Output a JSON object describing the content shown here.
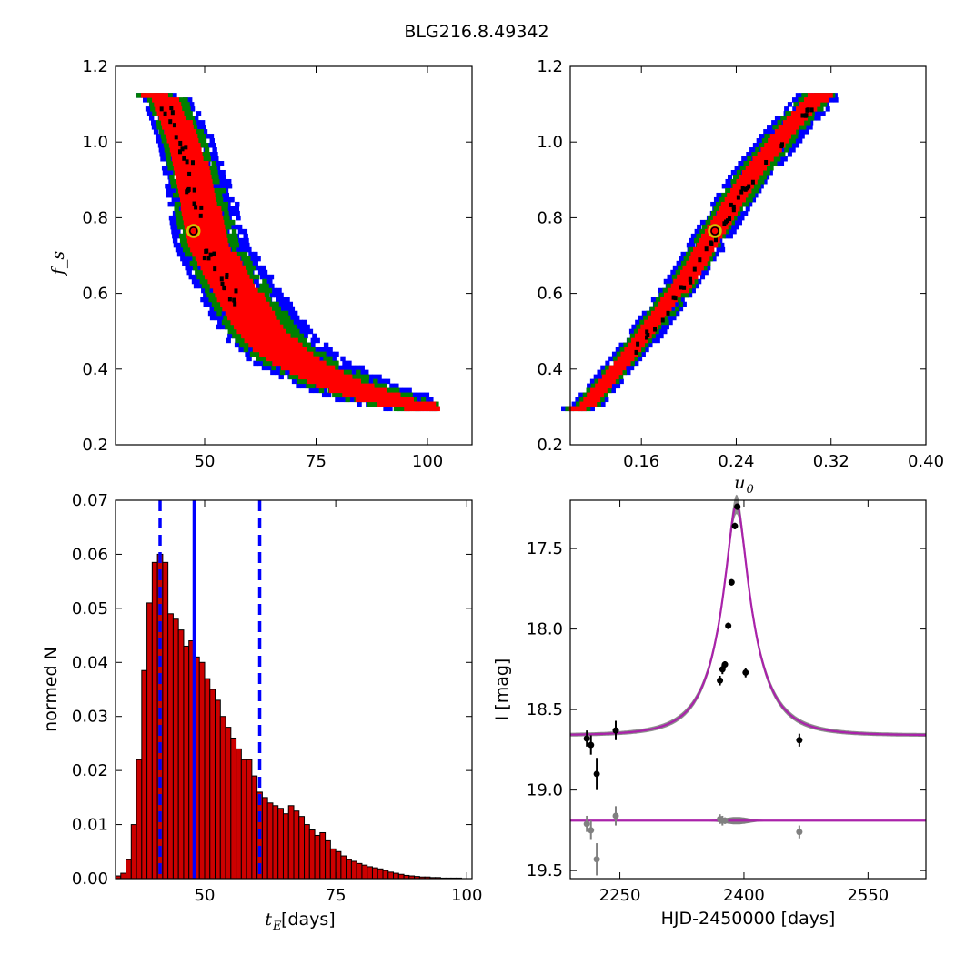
{
  "figure": {
    "title": "BLG216.8.49342"
  },
  "colors": {
    "red": "#ff0000",
    "green": "#008000",
    "blue": "#0000ff",
    "black": "#000000",
    "marker": "#cccc00",
    "purple": "#aa22aa",
    "grey": "#808080",
    "bar": "#cc0000"
  },
  "chart_data": [
    {
      "type": "heatmap",
      "title": "",
      "xlabel": "",
      "ylabel": "f_s",
      "xlim": [
        30,
        110
      ],
      "ylim": [
        0.2,
        1.2
      ],
      "xticks": [
        "50",
        "75",
        "100"
      ],
      "yticks": [
        "0.2",
        "0.4",
        "0.6",
        "0.8",
        "1.0",
        "1.2"
      ],
      "levels": [
        "best (black)",
        "1-sigma (red)",
        "2-sigma (green)",
        "3-sigma (blue)"
      ],
      "ridge": [
        [
          40,
          1.12
        ],
        [
          45,
          0.98
        ],
        [
          50,
          0.72
        ],
        [
          55,
          0.62
        ],
        [
          60,
          0.52
        ],
        [
          65,
          0.45
        ],
        [
          70,
          0.41
        ],
        [
          75,
          0.38
        ],
        [
          80,
          0.35
        ],
        [
          85,
          0.33
        ],
        [
          90,
          0.31
        ],
        [
          95,
          0.3
        ],
        [
          100,
          0.29
        ]
      ],
      "best_fit": {
        "x": 47.5,
        "y": 0.765
      }
    },
    {
      "type": "heatmap",
      "title": "",
      "xlabel": "u",
      "xlabel_sub": "0",
      "ylabel": "",
      "xlim": [
        0.1,
        0.4
      ],
      "ylim": [
        0.2,
        1.2
      ],
      "xticks": [
        "0.16",
        "0.24",
        "0.32",
        "0.40"
      ],
      "yticks": [
        "0.2",
        "0.4",
        "0.6",
        "0.8",
        "1.0",
        "1.2"
      ],
      "ridge": [
        [
          0.113,
          0.3
        ],
        [
          0.14,
          0.4
        ],
        [
          0.17,
          0.52
        ],
        [
          0.2,
          0.65
        ],
        [
          0.222,
          0.765
        ],
        [
          0.25,
          0.9
        ],
        [
          0.28,
          1.02
        ],
        [
          0.31,
          1.12
        ]
      ],
      "best_fit": {
        "x": 0.222,
        "y": 0.765
      }
    },
    {
      "type": "bar",
      "title": "",
      "xlabel": "t",
      "xlabel_sub": "E",
      "xlabel_rest": " [days]",
      "ylabel": "normed N",
      "xlim": [
        33,
        101
      ],
      "ylim": [
        0,
        0.07
      ],
      "xticks": [
        "50",
        "75",
        "100"
      ],
      "yticks": [
        "0.00",
        "0.01",
        "0.02",
        "0.03",
        "0.04",
        "0.05",
        "0.06",
        "0.07"
      ],
      "bin_width": 1,
      "x": [
        33.5,
        34.5,
        35.5,
        36.5,
        37.5,
        38.5,
        39.5,
        40.5,
        41.5,
        42.5,
        43.5,
        44.5,
        45.5,
        46.5,
        47.5,
        48.5,
        49.5,
        50.5,
        51.5,
        52.5,
        53.5,
        54.5,
        55.5,
        56.5,
        57.5,
        58.5,
        59.5,
        60.5,
        61.5,
        62.5,
        63.5,
        64.5,
        65.5,
        66.5,
        67.5,
        68.5,
        69.5,
        70.5,
        71.5,
        72.5,
        73.5,
        74.5,
        75.5,
        76.5,
        77.5,
        78.5,
        79.5,
        80.5,
        81.5,
        82.5,
        83.5,
        84.5,
        85.5,
        86.5,
        87.5,
        88.5,
        89.5,
        90.5,
        91.5,
        92.5,
        93.5,
        94.5,
        95.5,
        96.5,
        97.5,
        98.5
      ],
      "values": [
        0.0005,
        0.001,
        0.0035,
        0.01,
        0.022,
        0.0385,
        0.051,
        0.0585,
        0.06,
        0.0585,
        0.049,
        0.048,
        0.046,
        0.043,
        0.044,
        0.041,
        0.04,
        0.037,
        0.035,
        0.033,
        0.03,
        0.028,
        0.026,
        0.024,
        0.022,
        0.022,
        0.019,
        0.016,
        0.015,
        0.014,
        0.0135,
        0.013,
        0.012,
        0.0135,
        0.0125,
        0.0115,
        0.01,
        0.009,
        0.008,
        0.0085,
        0.007,
        0.0055,
        0.005,
        0.0042,
        0.0035,
        0.0032,
        0.0028,
        0.0025,
        0.0022,
        0.002,
        0.0018,
        0.0015,
        0.0012,
        0.001,
        0.0008,
        0.0006,
        0.0005,
        0.0004,
        0.0003,
        0.0003,
        0.0002,
        0.0002,
        0.0001,
        0.0001,
        0.0001,
        0.0001
      ],
      "median": 48,
      "interval": [
        41.5,
        60.5
      ]
    },
    {
      "type": "scatter",
      "title": "",
      "xlabel": "HJD-2450000 [days]",
      "ylabel": "I [mag]",
      "xlim": [
        2190,
        2620
      ],
      "ylim": [
        19.55,
        17.2
      ],
      "xticks": [
        "2250",
        "2400",
        "2550"
      ],
      "yticks": [
        "17.5",
        "18.0",
        "18.5",
        "19.0",
        "19.5"
      ],
      "model": {
        "t0": 2391,
        "tE": 47.5,
        "u0": 0.222,
        "fs": 0.765,
        "baseline": 18.66
      },
      "residual_offset": 19.19,
      "points": [
        {
          "x": 2210,
          "y": 18.68,
          "err": 0.05
        },
        {
          "x": 2215,
          "y": 18.72,
          "err": 0.06
        },
        {
          "x": 2222,
          "y": 18.9,
          "err": 0.1
        },
        {
          "x": 2245,
          "y": 18.63,
          "err": 0.06
        },
        {
          "x": 2371,
          "y": 18.32,
          "err": 0.03
        },
        {
          "x": 2374,
          "y": 18.25,
          "err": 0.03
        },
        {
          "x": 2377,
          "y": 18.22,
          "err": 0.02
        },
        {
          "x": 2381,
          "y": 17.98,
          "err": 0.02
        },
        {
          "x": 2385,
          "y": 17.71,
          "err": 0.02
        },
        {
          "x": 2389,
          "y": 17.36,
          "err": 0.02
        },
        {
          "x": 2392,
          "y": 17.24,
          "err": 0.02
        },
        {
          "x": 2402,
          "y": 18.27,
          "err": 0.03
        },
        {
          "x": 2467,
          "y": 18.69,
          "err": 0.04
        }
      ],
      "residuals": [
        {
          "x": 2210,
          "y": 19.21,
          "err": 0.05
        },
        {
          "x": 2215,
          "y": 19.25,
          "err": 0.06
        },
        {
          "x": 2222,
          "y": 19.43,
          "err": 0.1
        },
        {
          "x": 2245,
          "y": 19.16,
          "err": 0.06
        },
        {
          "x": 2371,
          "y": 19.18,
          "err": 0.03
        },
        {
          "x": 2374,
          "y": 19.19,
          "err": 0.03
        },
        {
          "x": 2377,
          "y": 19.19,
          "err": 0.02
        },
        {
          "x": 2467,
          "y": 19.26,
          "err": 0.04
        }
      ]
    }
  ]
}
